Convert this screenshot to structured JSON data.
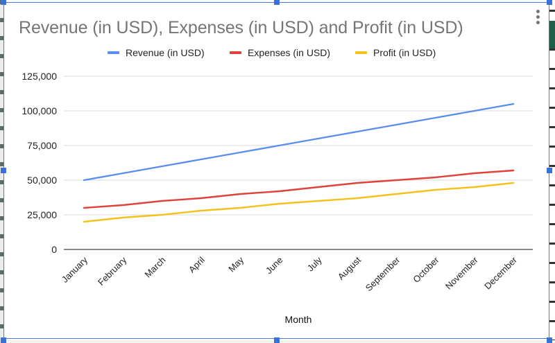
{
  "chart_menu": {
    "icon": "more-vert-icon"
  },
  "colors": {
    "revenue": "#5b8def",
    "expenses": "#e0423a",
    "profit": "#f4c21a",
    "grid": "#e0e0e0",
    "baseline": "#8a8a8a",
    "title": "#757575",
    "selection": "#3b6fd9"
  },
  "chart_data": {
    "type": "line",
    "title": "Revenue (in USD), Expenses (in USD) and Profit (in USD)",
    "xlabel": "Month",
    "ylabel": "",
    "categories": [
      "January",
      "February",
      "March",
      "April",
      "May",
      "June",
      "July",
      "August",
      "September",
      "October",
      "November",
      "December"
    ],
    "series": [
      {
        "name": "Revenue (in USD)",
        "color": "#5b8def",
        "values": [
          50000,
          55000,
          60000,
          65000,
          70000,
          75000,
          80000,
          85000,
          90000,
          95000,
          100000,
          105000
        ]
      },
      {
        "name": "Expenses (in USD)",
        "color": "#e0423a",
        "values": [
          30000,
          32000,
          35000,
          37000,
          40000,
          42000,
          45000,
          48000,
          50000,
          52000,
          55000,
          57000
        ]
      },
      {
        "name": "Profit (in USD)",
        "color": "#f4c21a",
        "values": [
          20000,
          23000,
          25000,
          28000,
          30000,
          33000,
          35000,
          37000,
          40000,
          43000,
          45000,
          48000
        ]
      }
    ],
    "ylim": [
      0,
      125000
    ],
    "yticks": [
      0,
      25000,
      50000,
      75000,
      100000,
      125000
    ],
    "ytick_labels": [
      "0",
      "25,000",
      "50,000",
      "75,000",
      "100,000",
      "125,000"
    ],
    "grid": true,
    "legend_position": "top-center"
  }
}
